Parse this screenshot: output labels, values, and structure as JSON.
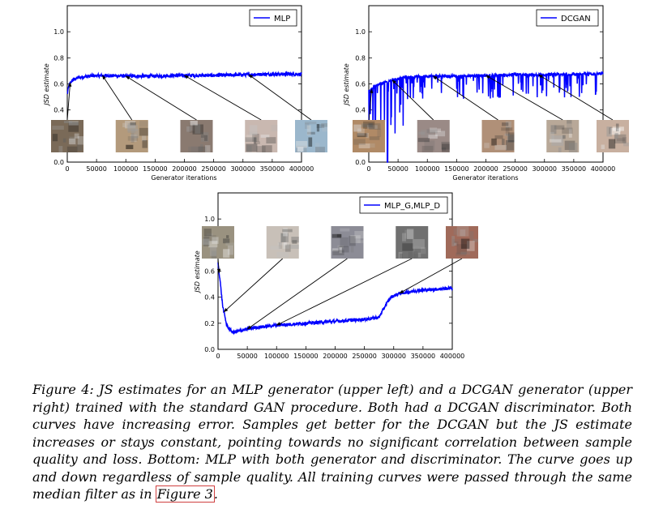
{
  "chart_data": [
    {
      "type": "line",
      "xlabel": "Generator iterations",
      "ylabel": "JSD estimate",
      "xlim": [
        0,
        400000
      ],
      "ylim": [
        0.0,
        1.2
      ],
      "xticks": [
        "0",
        "50000",
        "100000",
        "150000",
        "200000",
        "250000",
        "300000",
        "350000",
        "400000"
      ],
      "yticks": [
        "0.0",
        "0.2",
        "0.4",
        "0.6",
        "0.8",
        "1.0"
      ],
      "legend": "top-right",
      "series": [
        {
          "name": "MLP",
          "color": "#0000ff",
          "x": [
            0,
            2000,
            5000,
            10000,
            20000,
            40000,
            60000,
            100000,
            150000,
            200000,
            250000,
            300000,
            350000,
            400000
          ],
          "y": [
            0.52,
            0.57,
            0.61,
            0.63,
            0.65,
            0.66,
            0.665,
            0.66,
            0.66,
            0.665,
            0.665,
            0.67,
            0.675,
            0.675
          ]
        }
      ],
      "sample_anchors_x": [
        5000,
        60000,
        100000,
        200000,
        310000
      ]
    },
    {
      "type": "line",
      "xlabel": "Generator iterations",
      "ylabel": "JSD estimate",
      "xlim": [
        0,
        400000
      ],
      "ylim": [
        0.0,
        1.2
      ],
      "xticks": [
        "0",
        "50000",
        "100000",
        "150000",
        "200000",
        "250000",
        "300000",
        "350000",
        "400000"
      ],
      "yticks": [
        "0.0",
        "0.2",
        "0.4",
        "0.6",
        "0.8",
        "1.0"
      ],
      "legend": "top-right",
      "series": [
        {
          "name": "DCGAN",
          "color": "#0000ff",
          "x": [
            0,
            5000,
            10000,
            20000,
            40000,
            60000,
            100000,
            150000,
            200000,
            250000,
            300000,
            350000,
            400000
          ],
          "y": [
            0.55,
            0.56,
            0.58,
            0.6,
            0.63,
            0.65,
            0.66,
            0.66,
            0.665,
            0.67,
            0.67,
            0.675,
            0.68
          ]
        }
      ],
      "sample_anchors_x": [
        5000,
        40000,
        110000,
        200000,
        290000
      ]
    },
    {
      "type": "line",
      "xlabel": "",
      "ylabel": "JSD estimate",
      "xlim": [
        0,
        400000
      ],
      "ylim": [
        0.0,
        1.2
      ],
      "xticks": [
        "0",
        "50000",
        "100000",
        "150000",
        "200000",
        "250000",
        "300000",
        "350000",
        "400000"
      ],
      "yticks": [
        "0.0",
        "0.2",
        "0.4",
        "0.6",
        "0.8",
        "1.0"
      ],
      "legend": "top-right",
      "series": [
        {
          "name": "MLP_G,MLP_D",
          "color": "#0000ff",
          "x": [
            0,
            3000,
            8000,
            15000,
            25000,
            40000,
            60000,
            100000,
            150000,
            200000,
            250000,
            275000,
            285000,
            295000,
            310000,
            340000,
            370000,
            400000
          ],
          "y": [
            0.66,
            0.55,
            0.33,
            0.18,
            0.13,
            0.145,
            0.165,
            0.185,
            0.2,
            0.215,
            0.23,
            0.245,
            0.33,
            0.4,
            0.43,
            0.45,
            0.46,
            0.47
          ]
        }
      ],
      "sample_anchors_x": [
        2000,
        10000,
        50000,
        100000,
        310000
      ]
    }
  ],
  "caption": {
    "text": "Figure 4: JS estimates for an MLP generator (upper left) and a DCGAN generator (upper right) trained with the standard GAN procedure. Both had a DCGAN discriminator. Both curves have increasing error. Samples get better for the DCGAN but the JS estimate increases or stays constant, pointing towards no significant correlation between sample quality and loss. Bottom: MLP with both generator and discriminator. The curve goes up and down regardless of sample quality. All training curves were passed through the same median filter as in ",
    "ref": "Figure 3",
    "end": "."
  },
  "sample_colors": [
    [
      "#7a6a58",
      "#b39a7c",
      "#8a7a70",
      "#c9b8b0",
      "#9bb7cc"
    ],
    [
      "#b08a66",
      "#9a8a86",
      "#b09078",
      "#b8a898",
      "#c8b0a0"
    ],
    [
      "#9a9280",
      "#c8c0b8",
      "#8c8c96",
      "#707070",
      "#a06a5a"
    ]
  ]
}
